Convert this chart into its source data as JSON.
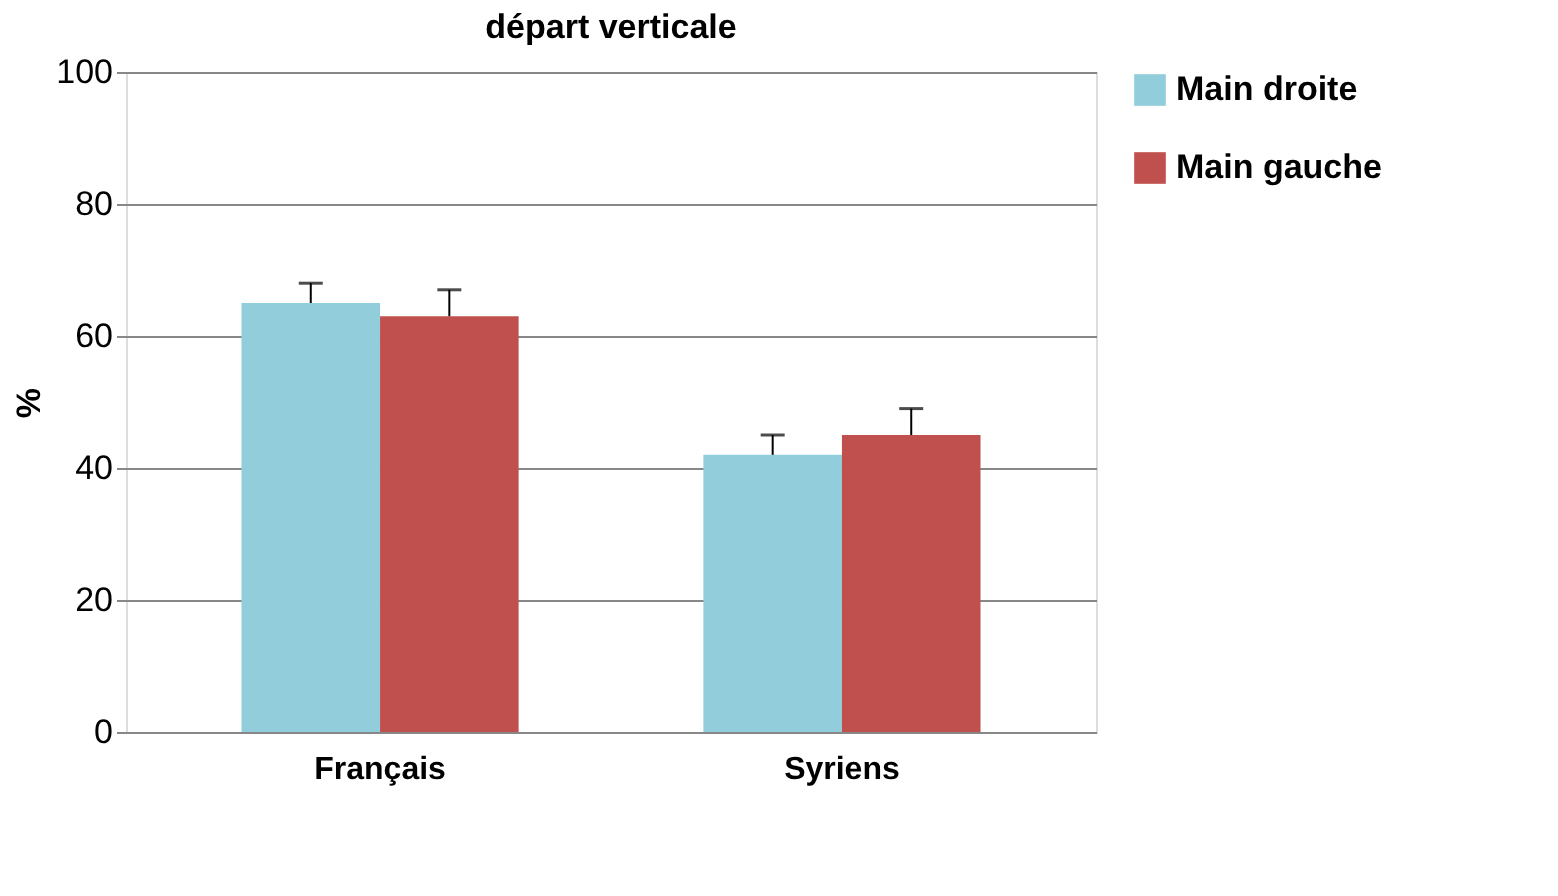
{
  "chart_data": {
    "type": "bar",
    "title": "départ verticale",
    "ylabel": "%",
    "categories": [
      "Français",
      "Syriens"
    ],
    "series": [
      {
        "name": "Main droite",
        "color": "#92cddc",
        "values": [
          65,
          42
        ],
        "errors": [
          [
            65,
            68
          ],
          [
            42,
            45
          ]
        ]
      },
      {
        "name": "Main gauche",
        "color": "#c0504d",
        "values": [
          63,
          45
        ],
        "errors": [
          [
            63,
            67
          ],
          [
            45,
            49
          ]
        ]
      }
    ],
    "ylim": [
      0,
      100
    ],
    "yticks": [
      0,
      20,
      40,
      60,
      80,
      100
    ],
    "grid": "y",
    "legend": "right"
  }
}
